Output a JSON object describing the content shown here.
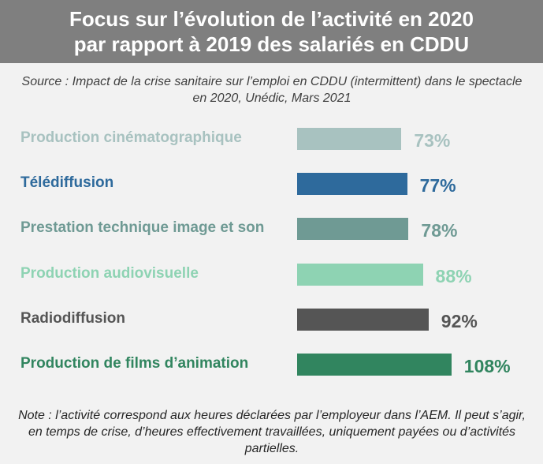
{
  "header": {
    "title_line1": "Focus sur l’évolution de l’activité en 2020",
    "title_line2": "par rapport à 2019 des salariés en CDDU"
  },
  "source": "Source : Impact de la crise sanitaire sur l’emploi en CDDU (intermittent) dans le spectacle en 2020, Unédic, Mars 2021",
  "note": "Note : l’activité correspond aux heures déclarées par l’employeur dans l’AEM. Il peut s’agir, en temps de crise, d’heures effectivement travaillées, uniquement payées ou d’activités partielles.",
  "chart_data": {
    "type": "bar",
    "orientation": "horizontal",
    "categories": [
      "Production cinématographique",
      "Télédiffusion",
      "Prestation technique image et son",
      "Production audiovisuelle",
      "Radiodiffusion",
      "Production de films d’animation"
    ],
    "values": [
      73,
      77,
      78,
      88,
      92,
      108
    ],
    "value_labels": [
      "73%",
      "77%",
      "78%",
      "88%",
      "92%",
      "108%"
    ],
    "colors": [
      "#a8c2c0",
      "#2e6a9c",
      "#6f9a94",
      "#8ed3b3",
      "#555555",
      "#31855f"
    ],
    "grid": false,
    "xlim": [
      0,
      110
    ]
  }
}
